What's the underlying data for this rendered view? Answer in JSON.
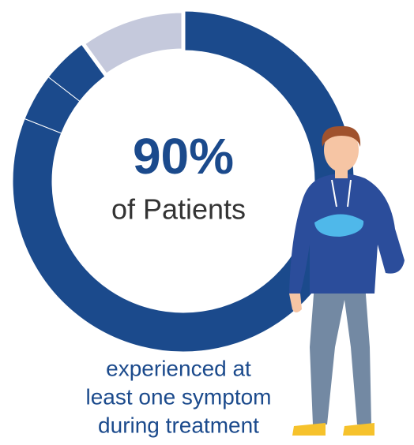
{
  "chart_data": {
    "type": "donut",
    "values": [
      81,
      4.5,
      4.5,
      10
    ],
    "colors": [
      "#1b4a8c",
      "#1b4a8c",
      "#1b4a8c",
      "#c5c9dc"
    ],
    "headline": "90%",
    "subheadline": "of Patients",
    "caption": [
      "experienced at",
      "least one symptom",
      "during treatment"
    ]
  }
}
